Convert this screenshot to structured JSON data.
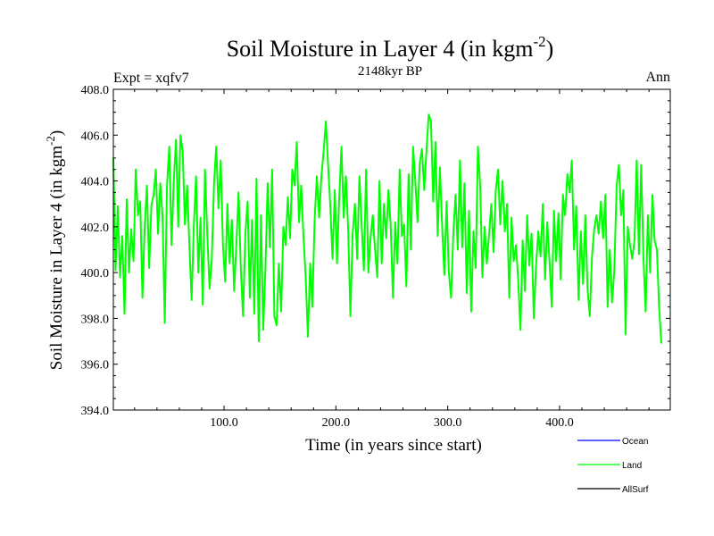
{
  "header": {
    "title_main": "Soil Moisture in Layer 4 (in kgm",
    "title_sup": "-2",
    "title_close": ")",
    "subtitle": "2148kyr BP",
    "left_label": "Expt = xqfv7",
    "right_label": "Ann"
  },
  "chart_data": {
    "type": "line",
    "title": "Soil Moisture in Layer 4 (in kgm-2)",
    "subtitle": "2148kyr BP",
    "xlabel": "Time (in years since start)",
    "ylabel": "Soil Moisture in Layer 4 (in kgm-2)",
    "ylabel_main": "Soil Moisture in Layer 4 (in kgm",
    "ylabel_sup": "-2",
    "ylabel_close": ")",
    "xlim": [
      1,
      499
    ],
    "ylim": [
      394.0,
      408.0
    ],
    "xticks": [
      100,
      200,
      300,
      400
    ],
    "xtick_labels": [
      "100.0",
      "200.0",
      "300.0",
      "400.0"
    ],
    "yticks": [
      394,
      396,
      398,
      400,
      402,
      404,
      406,
      408
    ],
    "ytick_labels": [
      "394.0",
      "396.0",
      "398.0",
      "400.0",
      "402.0",
      "404.0",
      "406.0",
      "408.0"
    ],
    "legend": {
      "placement": "bottom-right",
      "entries": [
        {
          "name": "Ocean",
          "color": "#0000ff"
        },
        {
          "name": "Land",
          "color": "#00ff00"
        },
        {
          "name": "AllSurf",
          "color": "#000000"
        }
      ]
    },
    "series": [
      {
        "name": "Land",
        "color": "#00ff00",
        "x_start": 1,
        "x_step": 2,
        "values": [
          405.0,
          400.1,
          402.9,
          399.8,
          401.6,
          398.2,
          403.2,
          400.0,
          401.9,
          400.5,
          404.5,
          402.5,
          403.1,
          398.9,
          402.0,
          403.8,
          400.2,
          402.9,
          403.4,
          404.5,
          401.7,
          403.9,
          402.5,
          397.8,
          403.8,
          405.5,
          401.2,
          404.0,
          405.8,
          402.0,
          406.0,
          405.3,
          402.1,
          403.8,
          401.2,
          398.8,
          402.1,
          404.2,
          400.0,
          402.4,
          398.6,
          404.5,
          401.6,
          399.3,
          400.6,
          403.9,
          405.5,
          402.8,
          404.9,
          401.2,
          399.6,
          403.0,
          400.4,
          402.3,
          399.2,
          401.2,
          403.5,
          400.2,
          398.1,
          401.7,
          403.1,
          398.9,
          402.3,
          398.2,
          404.1,
          397.0,
          402.5,
          397.5,
          400.2,
          403.9,
          401.1,
          404.5,
          398.1,
          397.7,
          400.4,
          398.3,
          402.0,
          401.2,
          403.3,
          401.5,
          404.5,
          403.8,
          405.7,
          402.2,
          403.8,
          401.6,
          399.8,
          397.2,
          400.4,
          398.5,
          402.3,
          404.2,
          402.4,
          404.2,
          405.3,
          406.6,
          404.7,
          402.9,
          400.6,
          403.6,
          400.4,
          403.3,
          405.5,
          402.4,
          404.2,
          401.9,
          398.1,
          401.7,
          403.0,
          400.6,
          404.2,
          402.1,
          400.1,
          404.5,
          400.0,
          401.5,
          402.5,
          401.0,
          399.8,
          404.0,
          400.4,
          403.0,
          401.5,
          403.6,
          402.1,
          398.9,
          402.2,
          400.4,
          404.5,
          401.6,
          402.1,
          399.4,
          404.3,
          401.0,
          405.5,
          404.0,
          402.2,
          404.8,
          405.4,
          403.6,
          405.3,
          406.9,
          406.6,
          403.1,
          405.7,
          401.6,
          404.6,
          402.0,
          399.9,
          403.1,
          400.0,
          398.9,
          401.7,
          403.4,
          401.0,
          404.9,
          401.1,
          403.9,
          399.1,
          402.7,
          398.3,
          401.8,
          400.2,
          405.5,
          403.8,
          399.8,
          402.0,
          400.4,
          401.7,
          403.0,
          400.9,
          403.6,
          404.5,
          402.1,
          404.0,
          401.8,
          403.0,
          398.9,
          402.4,
          400.5,
          401.2,
          399.7,
          397.5,
          401.4,
          399.2,
          402.5,
          400.3,
          401.7,
          398.0,
          400.3,
          401.8,
          400.7,
          403.0,
          399.7,
          402.2,
          400.5,
          398.5,
          402.7,
          400.5,
          402.6,
          399.7,
          403.4,
          402.5,
          404.3,
          403.5,
          404.9,
          401.0,
          402.9,
          398.8,
          401.8,
          399.5,
          402.5,
          399.3,
          398.1,
          400.7,
          401.9,
          402.5,
          401.7,
          403.1,
          401.5,
          403.4,
          398.5,
          401.0,
          398.7,
          400.1,
          403.8,
          404.7,
          402.5,
          403.6,
          397.3,
          402.0,
          401.2,
          400.6,
          401.4,
          404.9,
          400.8,
          404.7,
          400.7,
          398.3,
          402.5,
          400.0,
          403.4,
          401.4,
          401.0,
          398.5,
          396.9
        ]
      }
    ]
  }
}
